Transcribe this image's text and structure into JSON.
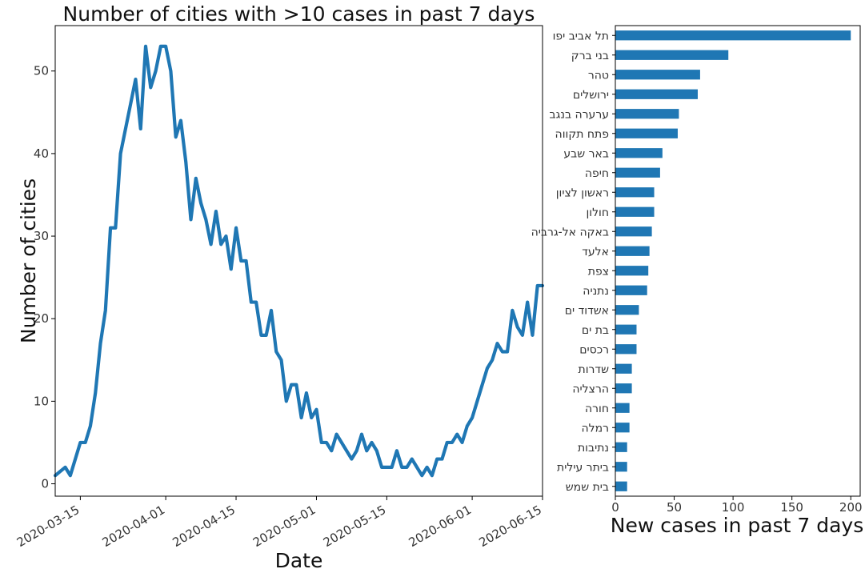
{
  "chart_data": [
    {
      "type": "line",
      "title": "Number of cities with >10 cases in past 7 days",
      "xlabel": "Date",
      "ylabel": "Number of cities",
      "ylim": [
        -1.5,
        55.5
      ],
      "xlim": [
        "2020-03-10",
        "2020-06-15"
      ],
      "grid": false,
      "color": "#1f77b4",
      "x_ticks": [
        "2020-03-15",
        "2020-04-01",
        "2020-04-15",
        "2020-05-01",
        "2020-05-15",
        "2020-06-01",
        "2020-06-15"
      ],
      "y_ticks": [
        "0",
        "10",
        "20",
        "30",
        "40",
        "50"
      ],
      "series": [
        {
          "x": [
            "2020-03-10",
            "2020-03-11",
            "2020-03-12",
            "2020-03-13",
            "2020-03-14",
            "2020-03-15",
            "2020-03-16",
            "2020-03-17",
            "2020-03-18",
            "2020-03-19",
            "2020-03-20",
            "2020-03-21",
            "2020-03-22",
            "2020-03-23",
            "2020-03-24",
            "2020-03-25",
            "2020-03-26",
            "2020-03-27",
            "2020-03-28",
            "2020-03-29",
            "2020-03-30",
            "2020-03-31",
            "2020-04-01",
            "2020-04-02",
            "2020-04-03",
            "2020-04-04",
            "2020-04-05",
            "2020-04-06",
            "2020-04-07",
            "2020-04-08",
            "2020-04-09",
            "2020-04-10",
            "2020-04-11",
            "2020-04-12",
            "2020-04-13",
            "2020-04-14",
            "2020-04-15",
            "2020-04-16",
            "2020-04-17",
            "2020-04-18",
            "2020-04-19",
            "2020-04-20",
            "2020-04-21",
            "2020-04-22",
            "2020-04-23",
            "2020-04-24",
            "2020-04-25",
            "2020-04-26",
            "2020-04-27",
            "2020-04-28",
            "2020-04-29",
            "2020-04-30",
            "2020-05-01",
            "2020-05-02",
            "2020-05-03",
            "2020-05-04",
            "2020-05-05",
            "2020-05-06",
            "2020-05-07",
            "2020-05-08",
            "2020-05-09",
            "2020-05-10",
            "2020-05-11",
            "2020-05-12",
            "2020-05-13",
            "2020-05-14",
            "2020-05-15",
            "2020-05-16",
            "2020-05-17",
            "2020-05-18",
            "2020-05-19",
            "2020-05-20",
            "2020-05-21",
            "2020-05-22",
            "2020-05-23",
            "2020-05-24",
            "2020-05-25",
            "2020-05-26",
            "2020-05-27",
            "2020-05-28",
            "2020-05-29",
            "2020-05-30",
            "2020-05-31",
            "2020-06-01",
            "2020-06-02",
            "2020-06-03",
            "2020-06-04",
            "2020-06-05",
            "2020-06-06",
            "2020-06-07",
            "2020-06-08",
            "2020-06-09",
            "2020-06-10",
            "2020-06-11",
            "2020-06-12",
            "2020-06-13",
            "2020-06-14",
            "2020-06-15"
          ],
          "y": [
            1,
            1.5,
            2,
            1,
            3,
            5,
            5,
            7,
            11,
            17,
            21,
            31,
            31,
            40,
            43,
            46,
            49,
            43,
            53,
            48,
            50,
            53,
            53,
            50,
            42,
            44,
            39,
            32,
            37,
            34,
            32,
            29,
            33,
            29,
            30,
            26,
            31,
            27,
            27,
            22,
            22,
            18,
            18,
            21,
            16,
            15,
            10,
            12,
            12,
            8,
            11,
            8,
            9,
            5,
            5,
            4,
            6,
            5,
            4,
            3,
            4,
            6,
            4,
            5,
            4,
            2,
            2,
            2,
            4,
            2,
            2,
            3,
            2,
            1,
            2,
            1,
            3,
            3,
            5,
            5,
            6,
            5,
            7,
            8,
            10,
            12,
            14,
            15,
            17,
            16,
            16,
            21,
            19,
            18,
            22,
            18,
            24,
            24
          ]
        }
      ]
    },
    {
      "type": "bar",
      "orientation": "horizontal",
      "xlabel": "New cases in past 7 days",
      "xlim": [
        0,
        208
      ],
      "x_ticks": [
        "0",
        "50",
        "100",
        "150",
        "200"
      ],
      "grid": false,
      "color": "#1f77b4",
      "categories": [
        "תל אביב יפו",
        "בני ברק",
        "טהר",
        "ירושלים",
        "ערערה בנגב",
        "פתח תקווה",
        "באר שבע",
        "חיפה",
        "ראשון לציון",
        "חולון",
        "באקה אל-גרביה",
        "אלעד",
        "צפת",
        "נתניה",
        "אשדוד ים",
        "בת ים",
        "רכסים",
        "שדרות",
        "הרצליה",
        "חורה",
        "רמלה",
        "נתיבות",
        "ביתר עילית",
        "בית שמש"
      ],
      "values": [
        200,
        96,
        72,
        70,
        54,
        53,
        40,
        38,
        33,
        33,
        31,
        29,
        28,
        27,
        20,
        18,
        18,
        14,
        14,
        12,
        12,
        10,
        10,
        10
      ]
    }
  ]
}
